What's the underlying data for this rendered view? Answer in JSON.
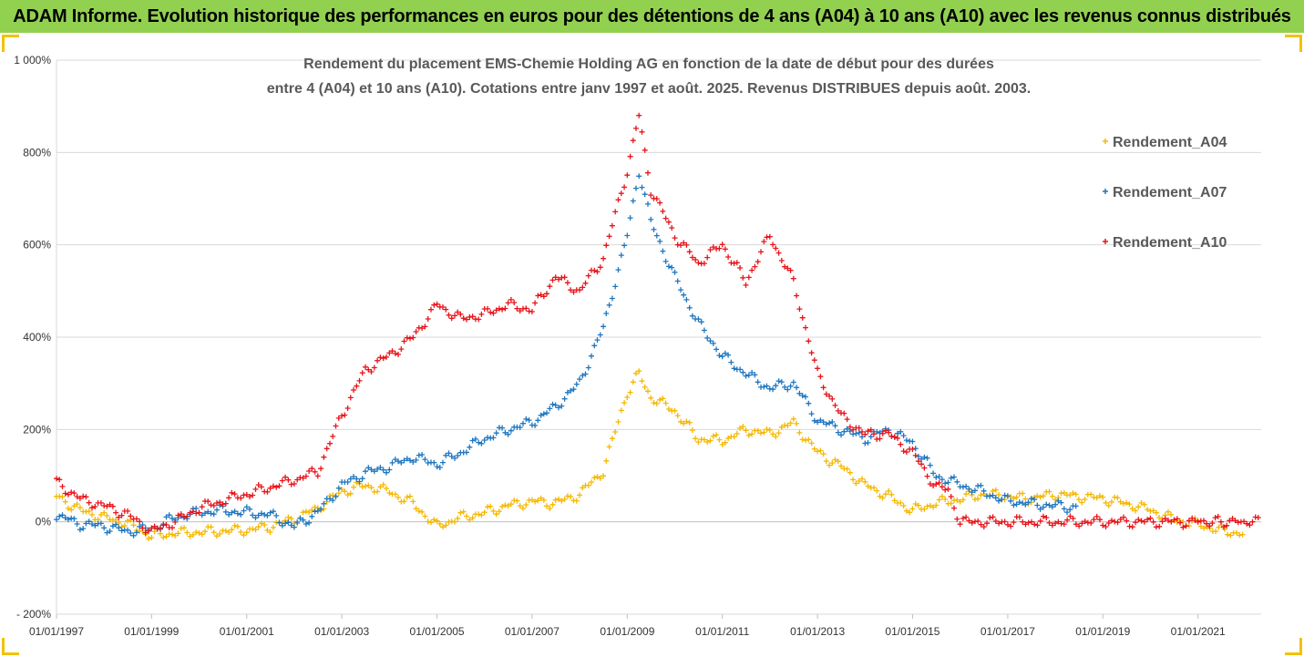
{
  "banner": {
    "title": "ADAM Informe. Evolution historique des performances en euros pour des détentions de 4 ans (A04) à 10 ans (A10) avec les revenus connus distribués",
    "background": "#92d050"
  },
  "chart_data": {
    "type": "scatter",
    "title_line1": "Rendement du placement EMS-Chemie Holding AG en fonction de la date de début pour des durées",
    "title_line2": "entre 4 (A04) et 10 ans (A10). Cotations entre janv 1997 et août. 2025. Revenus DISTRIBUES depuis août. 2003.",
    "xlabel": "",
    "ylabel": "",
    "x_ticks": [
      "01/01/1997",
      "01/01/1999",
      "01/01/2001",
      "01/01/2003",
      "01/01/2005",
      "01/01/2007",
      "01/01/2009",
      "01/01/2011",
      "01/01/2013",
      "01/01/2015",
      "01/01/2017",
      "01/01/2019",
      "01/01/2021"
    ],
    "xlim": [
      "1997-01-01",
      "2022-05-01"
    ],
    "y_ticks": [
      "- 200%",
      "0%",
      "200%",
      "400%",
      "600%",
      "800%",
      "1 000%"
    ],
    "ylim": [
      -200,
      1000
    ],
    "y_unit": "%",
    "grid": "horizontal",
    "legend_position": "right",
    "marker": "+",
    "series": [
      {
        "name": "Rendement_A04",
        "color": "#f5b800",
        "points": [
          [
            "1997-01-01",
            55
          ],
          [
            "1997-07-01",
            25
          ],
          [
            "1998-01-01",
            10
          ],
          [
            "1998-07-01",
            -5
          ],
          [
            "1999-01-01",
            -30
          ],
          [
            "1999-07-01",
            -25
          ],
          [
            "2000-01-01",
            -22
          ],
          [
            "2000-07-01",
            -20
          ],
          [
            "2001-01-01",
            -18
          ],
          [
            "2001-07-01",
            -10
          ],
          [
            "2002-01-01",
            5
          ],
          [
            "2002-07-01",
            30
          ],
          [
            "2003-01-01",
            65
          ],
          [
            "2003-07-01",
            80
          ],
          [
            "2004-01-01",
            65
          ],
          [
            "2004-07-01",
            40
          ],
          [
            "2005-01-01",
            -10
          ],
          [
            "2005-07-01",
            10
          ],
          [
            "2006-01-01",
            20
          ],
          [
            "2006-07-01",
            35
          ],
          [
            "2007-01-01",
            45
          ],
          [
            "2007-07-01",
            40
          ],
          [
            "2008-01-01",
            60
          ],
          [
            "2008-07-01",
            110
          ],
          [
            "2009-01-01",
            280
          ],
          [
            "2009-04-01",
            320
          ],
          [
            "2009-07-01",
            270
          ],
          [
            "2010-01-01",
            240
          ],
          [
            "2010-07-01",
            180
          ],
          [
            "2011-01-01",
            175
          ],
          [
            "2011-07-01",
            200
          ],
          [
            "2012-01-01",
            190
          ],
          [
            "2012-07-01",
            215
          ],
          [
            "2013-01-01",
            150
          ],
          [
            "2013-07-01",
            120
          ],
          [
            "2014-01-01",
            80
          ],
          [
            "2014-07-01",
            55
          ],
          [
            "2015-01-01",
            25
          ],
          [
            "2015-07-01",
            40
          ],
          [
            "2016-01-01",
            50
          ],
          [
            "2016-07-01",
            60
          ],
          [
            "2017-01-01",
            55
          ],
          [
            "2017-07-01",
            50
          ],
          [
            "2018-01-01",
            60
          ],
          [
            "2018-07-01",
            55
          ],
          [
            "2019-01-01",
            50
          ],
          [
            "2019-07-01",
            40
          ],
          [
            "2020-01-01",
            25
          ],
          [
            "2020-07-01",
            5
          ],
          [
            "2021-01-01",
            -5
          ],
          [
            "2021-07-01",
            -20
          ],
          [
            "2022-01-01",
            -25
          ]
        ]
      },
      {
        "name": "Rendement_A07",
        "color": "#1f77c0",
        "points": [
          [
            "1997-01-01",
            15
          ],
          [
            "1997-07-01",
            -5
          ],
          [
            "1998-01-01",
            -10
          ],
          [
            "1998-07-01",
            -20
          ],
          [
            "1999-01-01",
            -15
          ],
          [
            "1999-07-01",
            10
          ],
          [
            "2000-01-01",
            20
          ],
          [
            "2000-07-01",
            25
          ],
          [
            "2001-01-01",
            20
          ],
          [
            "2001-07-01",
            15
          ],
          [
            "2002-01-01",
            -10
          ],
          [
            "2002-07-01",
            20
          ],
          [
            "2003-01-01",
            80
          ],
          [
            "2003-07-01",
            105
          ],
          [
            "2004-01-01",
            120
          ],
          [
            "2004-07-01",
            140
          ],
          [
            "2005-01-01",
            125
          ],
          [
            "2005-07-01",
            150
          ],
          [
            "2006-01-01",
            180
          ],
          [
            "2006-07-01",
            200
          ],
          [
            "2007-01-01",
            215
          ],
          [
            "2007-07-01",
            250
          ],
          [
            "2008-01-01",
            300
          ],
          [
            "2008-07-01",
            420
          ],
          [
            "2009-01-01",
            620
          ],
          [
            "2009-04-01",
            760
          ],
          [
            "2009-07-01",
            650
          ],
          [
            "2010-01-01",
            530
          ],
          [
            "2010-07-01",
            430
          ],
          [
            "2011-01-01",
            360
          ],
          [
            "2011-07-01",
            320
          ],
          [
            "2012-01-01",
            290
          ],
          [
            "2012-07-01",
            300
          ],
          [
            "2013-01-01",
            220
          ],
          [
            "2013-07-01",
            200
          ],
          [
            "2014-01-01",
            180
          ],
          [
            "2014-07-01",
            200
          ],
          [
            "2015-01-01",
            170
          ],
          [
            "2015-07-01",
            100
          ],
          [
            "2016-01-01",
            80
          ],
          [
            "2016-07-01",
            65
          ],
          [
            "2017-01-01",
            45
          ],
          [
            "2017-07-01",
            40
          ],
          [
            "2018-01-01",
            35
          ],
          [
            "2018-07-01",
            30
          ]
        ]
      },
      {
        "name": "Rendement_A10",
        "color": "#e8141a",
        "points": [
          [
            "1997-01-01",
            85
          ],
          [
            "1997-07-01",
            50
          ],
          [
            "1998-01-01",
            35
          ],
          [
            "1998-07-01",
            15
          ],
          [
            "1999-01-01",
            -20
          ],
          [
            "1999-07-01",
            0
          ],
          [
            "2000-01-01",
            30
          ],
          [
            "2000-07-01",
            45
          ],
          [
            "2001-01-01",
            60
          ],
          [
            "2001-07-01",
            75
          ],
          [
            "2002-01-01",
            90
          ],
          [
            "2002-07-01",
            110
          ],
          [
            "2003-01-01",
            230
          ],
          [
            "2003-07-01",
            330
          ],
          [
            "2004-01-01",
            360
          ],
          [
            "2004-07-01",
            400
          ],
          [
            "2005-01-01",
            470
          ],
          [
            "2005-07-01",
            440
          ],
          [
            "2006-01-01",
            450
          ],
          [
            "2006-07-01",
            470
          ],
          [
            "2007-01-01",
            460
          ],
          [
            "2007-07-01",
            530
          ],
          [
            "2008-01-01",
            500
          ],
          [
            "2008-07-01",
            570
          ],
          [
            "2009-01-01",
            760
          ],
          [
            "2009-04-01",
            880
          ],
          [
            "2009-07-01",
            720
          ],
          [
            "2010-01-01",
            620
          ],
          [
            "2010-07-01",
            560
          ],
          [
            "2011-01-01",
            600
          ],
          [
            "2011-07-01",
            520
          ],
          [
            "2012-01-01",
            620
          ],
          [
            "2012-07-01",
            520
          ],
          [
            "2013-01-01",
            320
          ],
          [
            "2013-07-01",
            230
          ],
          [
            "2014-01-01",
            190
          ],
          [
            "2014-07-01",
            190
          ],
          [
            "2015-01-01",
            150
          ],
          [
            "2015-07-01",
            75
          ],
          [
            "2015-10-01",
            70
          ],
          [
            "2016-01-01",
            0
          ],
          [
            "2017-01-01",
            0
          ],
          [
            "2018-01-01",
            0
          ],
          [
            "2019-01-01",
            0
          ],
          [
            "2020-01-01",
            0
          ],
          [
            "2021-01-01",
            0
          ],
          [
            "2022-05-01",
            0
          ]
        ]
      }
    ]
  }
}
